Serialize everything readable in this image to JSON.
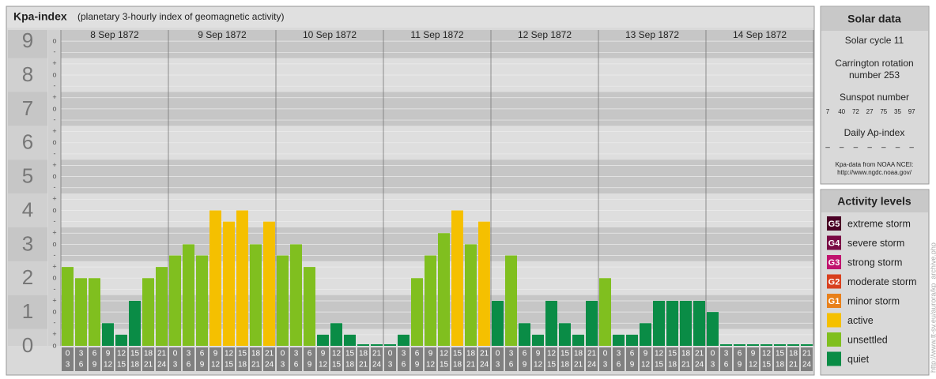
{
  "chart_data": {
    "type": "bar",
    "title": "Kpa-index",
    "subtitle": "(planetary 3-hourly index of geomagnetic activity)",
    "ylim": [
      0,
      9.33
    ],
    "yticks": [
      0,
      1,
      2,
      3,
      4,
      5,
      6,
      7,
      8,
      9
    ],
    "yminor": [
      {
        "value": 0,
        "label": "o"
      },
      {
        "value": 0.33,
        "label": "+"
      },
      {
        "value": 0.67,
        "label": "-"
      },
      {
        "value": 1,
        "label": "o"
      },
      {
        "value": 1.33,
        "label": "+"
      },
      {
        "value": 1.67,
        "label": "-"
      },
      {
        "value": 2,
        "label": "o"
      },
      {
        "value": 2.33,
        "label": "+"
      },
      {
        "value": 2.67,
        "label": "-"
      },
      {
        "value": 3,
        "label": "o"
      },
      {
        "value": 3.33,
        "label": "+"
      },
      {
        "value": 3.67,
        "label": "-"
      },
      {
        "value": 4,
        "label": "o"
      },
      {
        "value": 4.33,
        "label": "+"
      },
      {
        "value": 4.67,
        "label": "-"
      },
      {
        "value": 5,
        "label": "o"
      },
      {
        "value": 5.33,
        "label": "+"
      },
      {
        "value": 5.67,
        "label": "-"
      },
      {
        "value": 6,
        "label": "o"
      },
      {
        "value": 6.33,
        "label": "+"
      },
      {
        "value": 6.67,
        "label": "-"
      },
      {
        "value": 7,
        "label": "o"
      },
      {
        "value": 7.33,
        "label": "+"
      },
      {
        "value": 7.67,
        "label": "-"
      },
      {
        "value": 8,
        "label": "o"
      },
      {
        "value": 8.33,
        "label": "+"
      },
      {
        "value": 8.67,
        "label": "-"
      },
      {
        "value": 9,
        "label": "o"
      }
    ],
    "time_slots": [
      {
        "start": "0",
        "end": "3"
      },
      {
        "start": "3",
        "end": "6"
      },
      {
        "start": "6",
        "end": "9"
      },
      {
        "start": "9",
        "end": "12"
      },
      {
        "start": "12",
        "end": "15"
      },
      {
        "start": "15",
        "end": "18"
      },
      {
        "start": "18",
        "end": "21"
      },
      {
        "start": "21",
        "end": "24"
      }
    ],
    "days": [
      {
        "label": "8 Sep 1872",
        "values": [
          2.33,
          2,
          2,
          0.67,
          0.33,
          1.33,
          2,
          2.33
        ],
        "colors": [
          "#80bf1f",
          "#80bf1f",
          "#80bf1f",
          "#0a8c46",
          "#0a8c46",
          "#0a8c46",
          "#80bf1f",
          "#80bf1f"
        ]
      },
      {
        "label": "9 Sep 1872",
        "values": [
          2.67,
          3,
          2.67,
          4,
          3.67,
          4,
          3,
          3.67
        ],
        "colors": [
          "#80bf1f",
          "#80bf1f",
          "#80bf1f",
          "#f5c000",
          "#f5c000",
          "#f5c000",
          "#80bf1f",
          "#f5c000"
        ]
      },
      {
        "label": "10 Sep 1872",
        "values": [
          2.67,
          3,
          2.33,
          0.33,
          0.67,
          0.33,
          0,
          0
        ],
        "colors": [
          "#80bf1f",
          "#80bf1f",
          "#80bf1f",
          "#0a8c46",
          "#0a8c46",
          "#0a8c46",
          "#0a8c46",
          "#0a8c46"
        ]
      },
      {
        "label": "11 Sep 1872",
        "values": [
          0,
          0.33,
          2,
          2.67,
          3.33,
          4,
          3,
          3.67
        ],
        "colors": [
          "#0a8c46",
          "#0a8c46",
          "#80bf1f",
          "#80bf1f",
          "#80bf1f",
          "#f5c000",
          "#80bf1f",
          "#f5c000"
        ]
      },
      {
        "label": "12 Sep 1872",
        "values": [
          1.33,
          2.67,
          0.67,
          0.33,
          1.33,
          0.67,
          0.33,
          1.33
        ],
        "colors": [
          "#0a8c46",
          "#80bf1f",
          "#0a8c46",
          "#0a8c46",
          "#0a8c46",
          "#0a8c46",
          "#0a8c46",
          "#0a8c46"
        ]
      },
      {
        "label": "13 Sep 1872",
        "values": [
          2,
          0.33,
          0.33,
          0.67,
          1.33,
          1.33,
          1.33,
          1.33
        ],
        "colors": [
          "#80bf1f",
          "#0a8c46",
          "#0a8c46",
          "#0a8c46",
          "#0a8c46",
          "#0a8c46",
          "#0a8c46",
          "#0a8c46"
        ]
      },
      {
        "label": "14 Sep 1872",
        "values": [
          1,
          0,
          0,
          0,
          0,
          0,
          0,
          0
        ],
        "colors": [
          "#0a8c46",
          "#0a8c46",
          "#0a8c46",
          "#0a8c46",
          "#0a8c46",
          "#0a8c46",
          "#0a8c46",
          "#0a8c46"
        ]
      }
    ]
  },
  "solar_data": {
    "title": "Solar data",
    "cycle": "Solar cycle 11",
    "carrington": [
      "Carrington rotation",
      "number 253"
    ],
    "sunspot_title": "Sunspot number",
    "sunspots": [
      7,
      40,
      72,
      27,
      75,
      35,
      97
    ],
    "ap_title": "Daily Ap-index",
    "ap": [
      "–",
      "–",
      "–",
      "–",
      "–",
      "–",
      "–"
    ],
    "source": [
      "Kpa-data from NOAA NCEI:",
      "http://www.ngdc.noaa.gov/"
    ]
  },
  "activity_levels": {
    "title": "Activity levels",
    "items": [
      {
        "badge": "G5",
        "label": "extreme storm",
        "color": "#4a0025"
      },
      {
        "badge": "G4",
        "label": "severe storm",
        "color": "#7a0a45"
      },
      {
        "badge": "G3",
        "label": "strong storm",
        "color": "#c0146e"
      },
      {
        "badge": "G2",
        "label": "moderate storm",
        "color": "#d8401e"
      },
      {
        "badge": "G1",
        "label": "minor storm",
        "color": "#e8801a"
      },
      {
        "badge": null,
        "label": "active",
        "color": "#f5c000"
      },
      {
        "badge": null,
        "label": "unsettled",
        "color": "#80bf1f"
      },
      {
        "badge": null,
        "label": "quiet",
        "color": "#0a8c46"
      }
    ]
  },
  "watermark": "http://www.tt-sv.eu/aurora/kp_archive.php"
}
